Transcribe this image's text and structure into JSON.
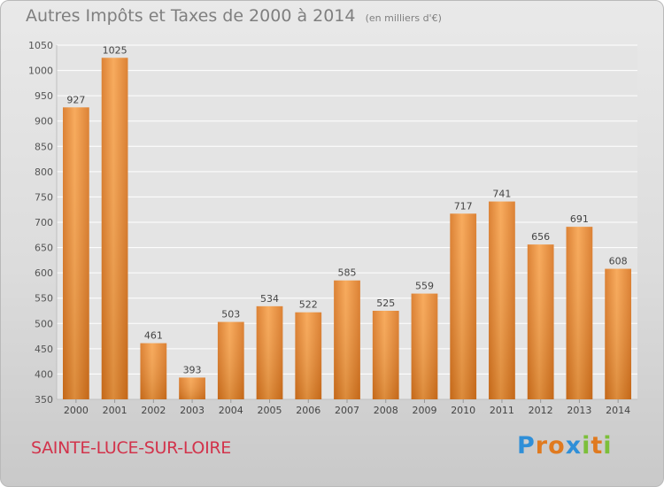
{
  "chart_data": {
    "type": "bar",
    "title": "Autres Impôts et Taxes de 2000 à 2014",
    "subtitle": "(en milliers d'€)",
    "categories": [
      "2000",
      "2001",
      "2002",
      "2003",
      "2004",
      "2005",
      "2006",
      "2007",
      "2008",
      "2009",
      "2010",
      "2011",
      "2012",
      "2013",
      "2014"
    ],
    "values": [
      927,
      1025,
      461,
      393,
      503,
      534,
      522,
      585,
      525,
      559,
      717,
      741,
      656,
      691,
      608
    ],
    "ylim": [
      350,
      1050
    ],
    "yticks": [
      350,
      400,
      450,
      500,
      550,
      600,
      650,
      700,
      750,
      800,
      850,
      900,
      950,
      1000,
      1050
    ],
    "grid": true,
    "bar_color": "#f0953a"
  },
  "commune": "SAINTE-LUCE-SUR-LOIRE",
  "logo": {
    "text": "Proxiti",
    "letters": [
      {
        "ch": "P",
        "color": "#2f8fd8"
      },
      {
        "ch": "r",
        "color": "#e07a1f"
      },
      {
        "ch": "o",
        "color": "#e07a1f"
      },
      {
        "ch": "x",
        "color": "#2f8fd8"
      },
      {
        "ch": "i",
        "color": "#7cbf3a"
      },
      {
        "ch": "t",
        "color": "#e07a1f"
      },
      {
        "ch": "i",
        "color": "#7cbf3a"
      }
    ]
  }
}
